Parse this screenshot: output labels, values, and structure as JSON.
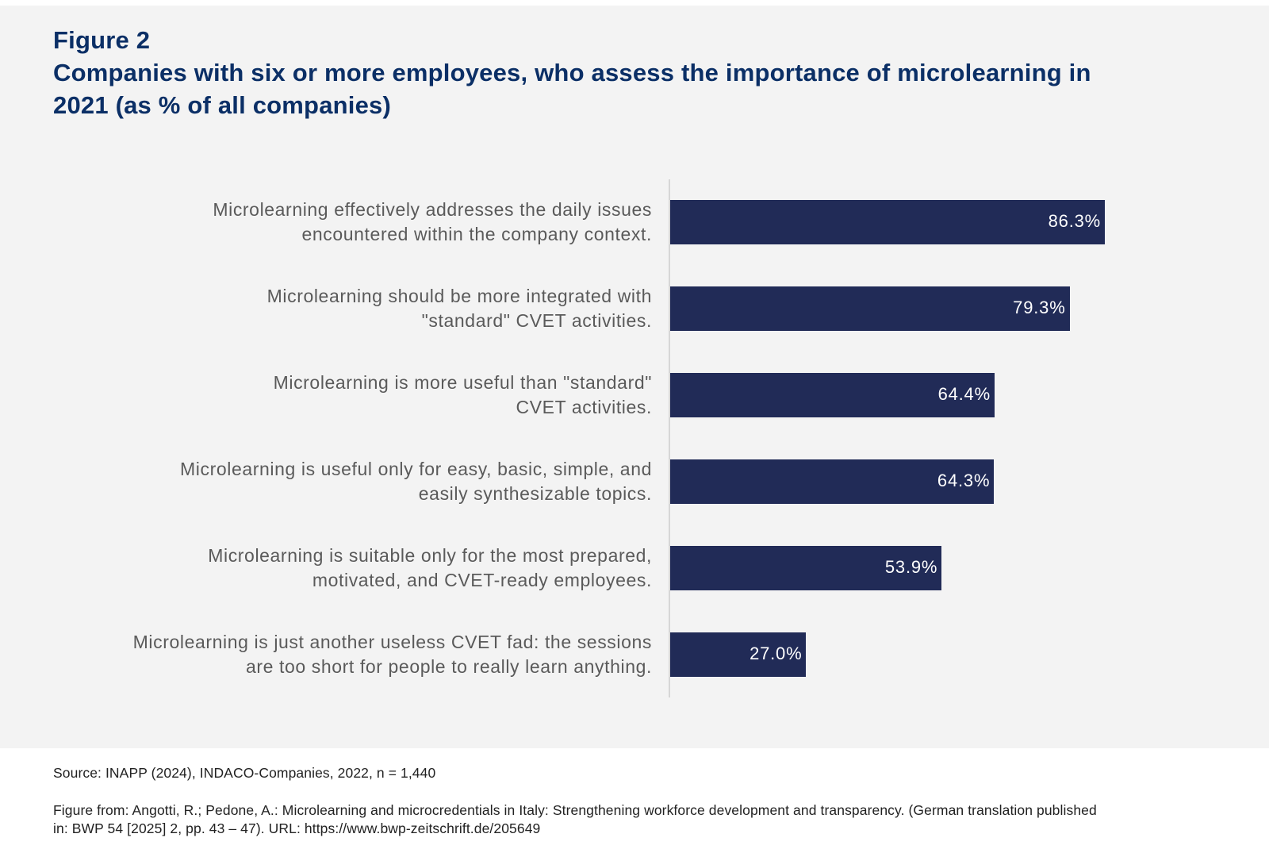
{
  "figure_label": "Figure 2",
  "chart_data": {
    "type": "bar",
    "orientation": "horizontal",
    "title": "Companies with six or more employees, who assess the importance of microlearning in 2021 (as % of all companies)",
    "title_lines": [
      "Companies with six or more employees, who assess the importance of microlearning in",
      "2021 (as % of all companies)"
    ],
    "categories": [
      [
        "Microlearning effectively addresses the daily issues",
        "encountered within the company context."
      ],
      [
        "Microlearning should be more integrated with",
        "\"standard\" CVET activities."
      ],
      [
        "Microlearning is more useful than \"standard\"",
        "CVET activities."
      ],
      [
        "Microlearning is useful only for easy, basic, simple, and",
        "easily synthesizable topics."
      ],
      [
        "Microlearning is suitable only for the most prepared,",
        "motivated, and CVET-ready employees."
      ],
      [
        "Microlearning is just another useless CVET fad: the sessions",
        "are too short for people to really learn anything."
      ]
    ],
    "values": [
      86.3,
      79.3,
      64.4,
      64.3,
      53.9,
      27.0
    ],
    "value_labels": [
      "86.3%",
      "79.3%",
      "64.4%",
      "64.3%",
      "53.9%",
      "27.0%"
    ],
    "xlabel": "",
    "ylabel": "",
    "xlim": [
      0,
      100
    ],
    "grid": false,
    "legend": "none",
    "bar_color": "#212b57"
  },
  "footer": {
    "source": "Source: INAPP (2024), INDACO-Companies, 2022, n = 1,440",
    "citation_lines": [
      "Figure from: Angotti, R.; Pedone, A.: Microlearning and microcredentials in Italy: Strengthening workforce development and transparency. (German translation published",
      "in: BWP 54 [2025] 2, pp. 43 – 47). URL: https://www.bwp-zeitschrift.de/205649"
    ]
  }
}
